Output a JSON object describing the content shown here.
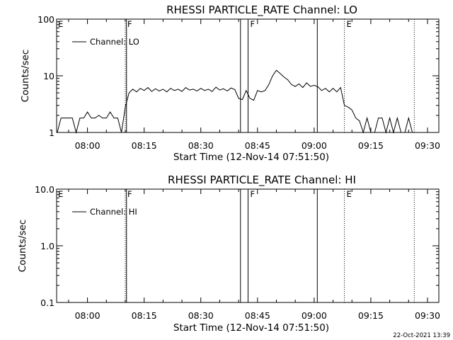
{
  "chart_data": [
    {
      "type": "line",
      "title": "RHESSI PARTICLE_RATE Channel: LO",
      "xlabel": "Start Time (12-Nov-14 07:51:50)",
      "ylabel": "Counts/sec",
      "yscale": "log",
      "ylim": [
        1,
        100
      ],
      "xlim": [
        "07:51:50",
        "09:33:00"
      ],
      "x_ticks": [
        "08:00",
        "08:15",
        "08:30",
        "08:45",
        "09:00",
        "09:15",
        "09:30"
      ],
      "y_ticks": [
        "1",
        "10",
        "100"
      ],
      "legend": {
        "label": "Channel: LO",
        "placement": "top-left"
      },
      "markers": [
        {
          "time": "08:10:00",
          "style": "dotted",
          "label": "F"
        },
        {
          "time": "08:10:20",
          "style": "solid",
          "label": ""
        },
        {
          "time": "08:40:30",
          "style": "solid",
          "label": ""
        },
        {
          "time": "08:42:30",
          "style": "solid",
          "label": "F"
        },
        {
          "time": "09:00:50",
          "style": "solid",
          "label": ""
        },
        {
          "time": "09:08:00",
          "style": "dotted",
          "label": "E"
        },
        {
          "time": "09:26:30",
          "style": "dotted",
          "label": ""
        }
      ],
      "edge_label": "E",
      "series": [
        {
          "x": [
            "07:52",
            "07:53",
            "07:54",
            "07:55",
            "07:56",
            "07:57",
            "07:58",
            "07:59",
            "08:00",
            "08:01",
            "08:02",
            "08:03",
            "08:04",
            "08:05",
            "08:06",
            "08:07",
            "08:08",
            "08:09",
            "08:10",
            "08:11",
            "08:12",
            "08:13",
            "08:14",
            "08:15",
            "08:16",
            "08:17",
            "08:18",
            "08:19",
            "08:20",
            "08:21",
            "08:22",
            "08:23",
            "08:24",
            "08:25",
            "08:26",
            "08:27",
            "08:28",
            "08:29",
            "08:30",
            "08:31",
            "08:32",
            "08:33",
            "08:34",
            "08:35",
            "08:36",
            "08:37",
            "08:38",
            "08:39",
            "08:40",
            "08:41",
            "08:42",
            "08:43",
            "08:44",
            "08:45",
            "08:46",
            "08:47",
            "08:48",
            "08:49",
            "08:50",
            "08:51",
            "08:52",
            "08:53",
            "08:54",
            "08:55",
            "08:56",
            "08:57",
            "08:58",
            "08:59",
            "09:00",
            "09:01",
            "09:02",
            "09:03",
            "09:04",
            "09:05",
            "09:06",
            "09:07",
            "09:08",
            "09:09",
            "09:10",
            "09:11",
            "09:12",
            "09:13",
            "09:14",
            "09:15",
            "09:16",
            "09:17",
            "09:18",
            "09:19",
            "09:20",
            "09:21",
            "09:22",
            "09:23",
            "09:24",
            "09:25",
            "09:26"
          ],
          "values": [
            1,
            1.8,
            1.8,
            1.8,
            1.8,
            1,
            1.8,
            1.8,
            2.3,
            1.8,
            1.8,
            2,
            1.8,
            1.8,
            2.3,
            1.8,
            1.8,
            1,
            2.8,
            5,
            5.8,
            5.2,
            6,
            5.5,
            6.2,
            5.3,
            5.9,
            5.4,
            5.8,
            5.2,
            6,
            5.5,
            5.8,
            5.3,
            6.2,
            5.6,
            5.8,
            5.4,
            6,
            5.5,
            5.8,
            5.3,
            6.3,
            5.6,
            5.9,
            5.4,
            6.1,
            5.7,
            4,
            3.8,
            5.5,
            4,
            3.7,
            5.5,
            5.2,
            5.5,
            7,
            10,
            12.5,
            11,
            9.5,
            8.5,
            7,
            6.5,
            7.2,
            6.2,
            7.5,
            6.5,
            6.8,
            6.4,
            5.5,
            6,
            5.2,
            6,
            5.2,
            6.2,
            3,
            2.8,
            2.5,
            1.8,
            1.6,
            1,
            1.8,
            1,
            1,
            1.8,
            1.8,
            1,
            1.8,
            1,
            1.8,
            1,
            1,
            1.8,
            1
          ]
        }
      ]
    },
    {
      "type": "line",
      "title": "RHESSI PARTICLE_RATE Channel: HI",
      "xlabel": "Start Time (12-Nov-14 07:51:50)",
      "ylabel": "Counts/sec",
      "yscale": "log",
      "ylim": [
        0.1,
        10
      ],
      "xlim": [
        "07:51:50",
        "09:33:00"
      ],
      "x_ticks": [
        "08:00",
        "08:15",
        "08:30",
        "08:45",
        "09:00",
        "09:15",
        "09:30"
      ],
      "y_ticks": [
        "0.1",
        "1.0",
        "10.0"
      ],
      "legend": {
        "label": "Channel: HI",
        "placement": "top-left"
      },
      "markers": [
        {
          "time": "08:10:00",
          "style": "dotted",
          "label": "F"
        },
        {
          "time": "08:10:20",
          "style": "solid",
          "label": ""
        },
        {
          "time": "08:40:30",
          "style": "solid",
          "label": ""
        },
        {
          "time": "08:42:30",
          "style": "solid",
          "label": "F"
        },
        {
          "time": "09:00:50",
          "style": "solid",
          "label": ""
        },
        {
          "time": "09:08:00",
          "style": "dotted",
          "label": "E"
        },
        {
          "time": "09:26:30",
          "style": "dotted",
          "label": ""
        }
      ],
      "edge_label": "E",
      "series": []
    }
  ],
  "footer": {
    "date": "22-Oct-2021 13:39"
  }
}
